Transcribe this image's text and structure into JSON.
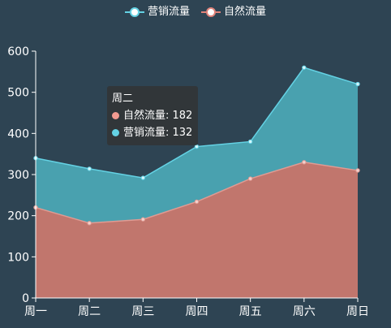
{
  "chart_data": {
    "type": "area",
    "stacked": true,
    "categories": [
      "周一",
      "周二",
      "周三",
      "周四",
      "周五",
      "周六",
      "周日"
    ],
    "series": [
      {
        "name": "自然流量",
        "values": [
          220,
          182,
          191,
          234,
          290,
          330,
          310
        ],
        "color": "#c1766d",
        "line_color": "#e09b93"
      },
      {
        "name": "营销流量",
        "values": [
          120,
          132,
          101,
          134,
          90,
          230,
          210
        ],
        "color": "#4ba6b4",
        "line_color": "#64d2e4"
      }
    ],
    "ylim": [
      0,
      600
    ],
    "yticks": [
      0,
      100,
      200,
      300,
      400,
      500,
      600
    ],
    "grid": false,
    "legend": {
      "position": "top-center",
      "items": [
        {
          "label": "营销流量",
          "color": "#64d2e4"
        },
        {
          "label": "自然流量",
          "color": "#e0837a"
        }
      ]
    }
  },
  "tooltip": {
    "title": "周二",
    "rows": [
      {
        "label": "自然流量: 182",
        "color": "#f29a90"
      },
      {
        "label": "营销流量: 132",
        "color": "#64d2e4"
      }
    ]
  }
}
